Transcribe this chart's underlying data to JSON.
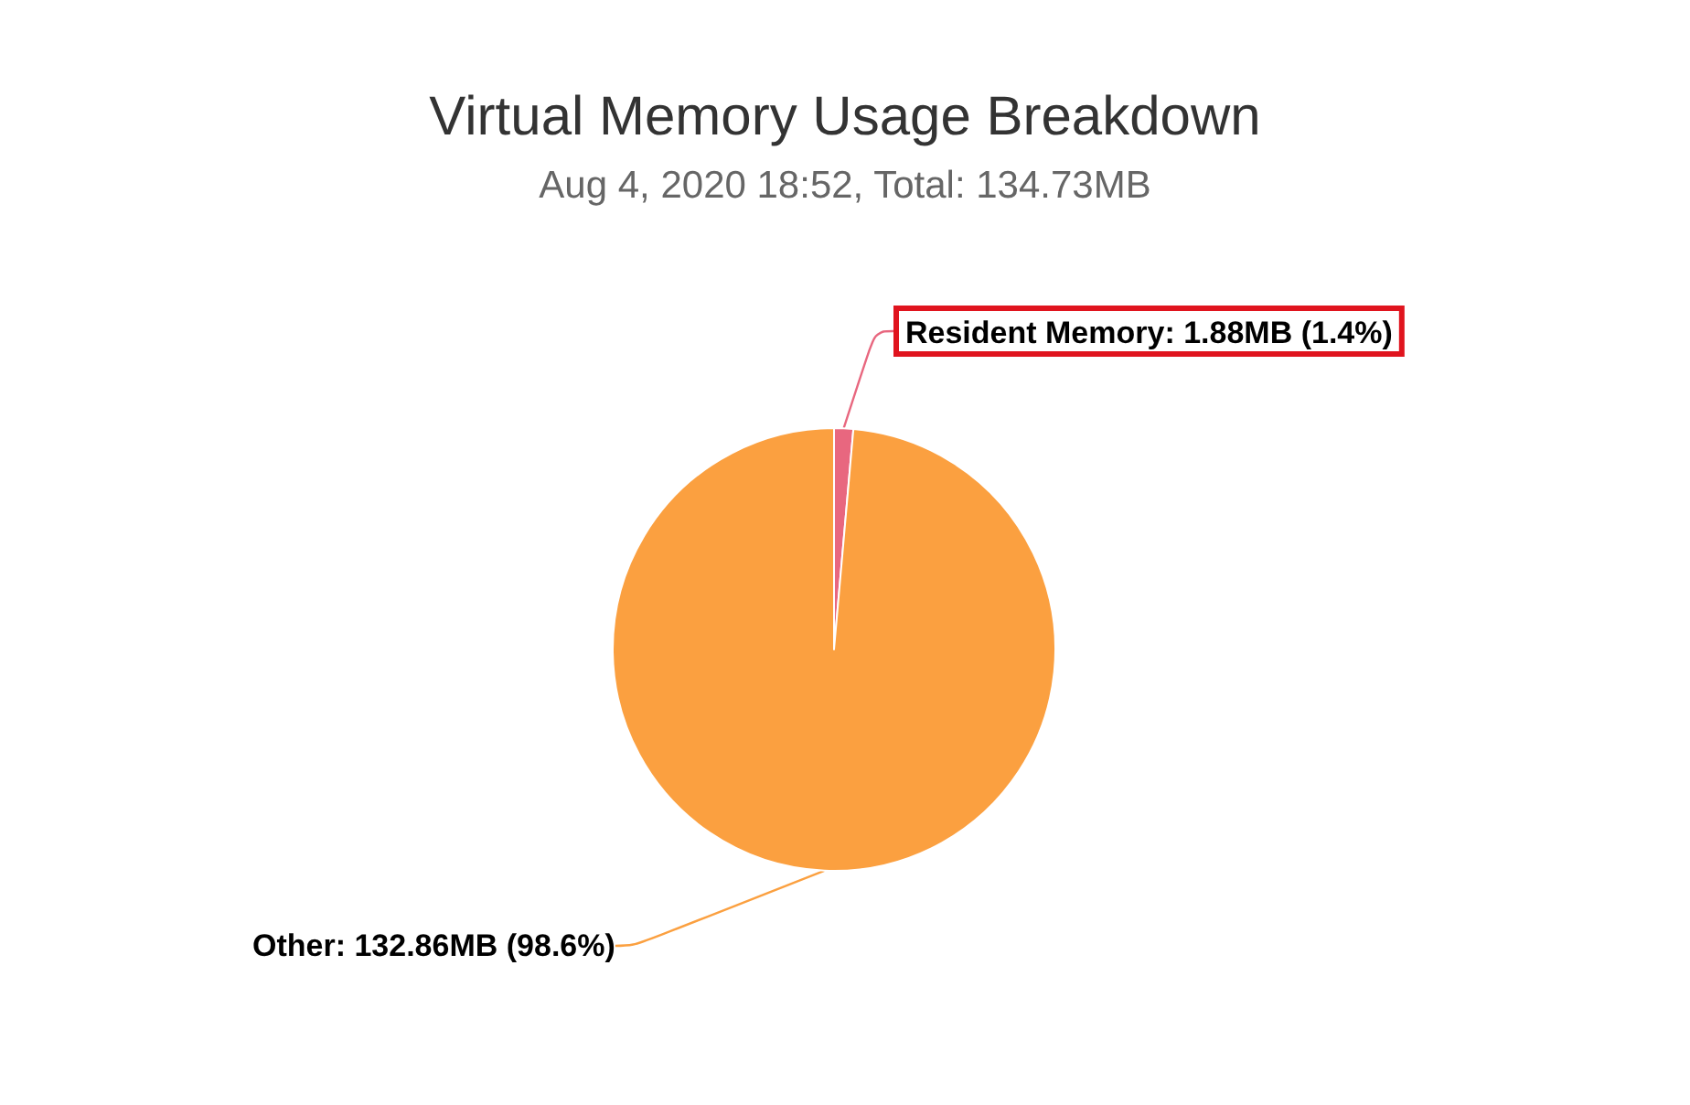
{
  "chart_data": {
    "type": "pie",
    "title": "Virtual Memory Usage Breakdown",
    "subtitle": "Aug 4, 2020 18:52, Total: 134.73MB",
    "categories": [
      "Resident Memory",
      "Other"
    ],
    "values": [
      1.88,
      132.86
    ],
    "colors": [
      "#e8677f",
      "#fba040"
    ],
    "value_labels": [
      "1.88MB (1.4%)",
      "132.86MB (98.6%)"
    ]
  }
}
